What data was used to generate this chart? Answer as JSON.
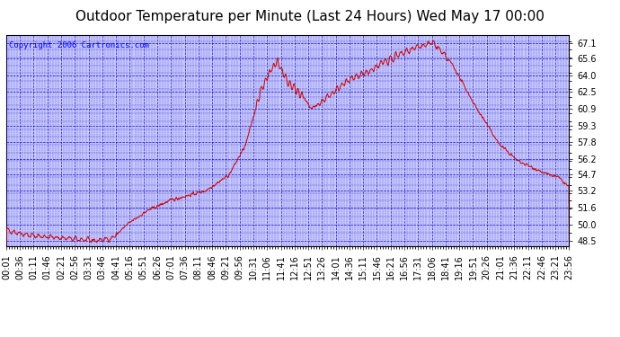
{
  "title": "Outdoor Temperature per Minute (Last 24 Hours) Wed May 17 00:00",
  "copyright_text": "Copyright 2006 Cartronics.com",
  "y_ticks": [
    48.5,
    50.0,
    51.6,
    53.2,
    54.7,
    56.2,
    57.8,
    59.3,
    60.9,
    62.5,
    64.0,
    65.6,
    67.1
  ],
  "ylim": [
    48.0,
    67.8
  ],
  "x_tick_labels": [
    "00:01",
    "00:36",
    "01:11",
    "01:46",
    "02:21",
    "02:56",
    "03:31",
    "03:46",
    "04:41",
    "05:16",
    "05:51",
    "06:26",
    "07:01",
    "07:36",
    "08:11",
    "08:46",
    "09:21",
    "09:56",
    "10:31",
    "11:06",
    "11:41",
    "12:16",
    "12:51",
    "13:26",
    "14:01",
    "14:36",
    "15:11",
    "15:46",
    "16:21",
    "16:56",
    "17:31",
    "18:06",
    "18:41",
    "19:16",
    "19:51",
    "20:26",
    "21:01",
    "21:36",
    "22:11",
    "22:46",
    "23:21",
    "23:56"
  ],
  "line_color": "#cc0000",
  "fig_bg_color": "#ffffff",
  "plot_bg_color": "#c8c8ff",
  "grid_major_color": "#0000bb",
  "grid_minor_color": "#0000bb",
  "title_fontsize": 11,
  "copyright_fontsize": 6.5,
  "tick_fontsize": 7,
  "figwidth": 6.9,
  "figheight": 3.75,
  "dpi": 100
}
